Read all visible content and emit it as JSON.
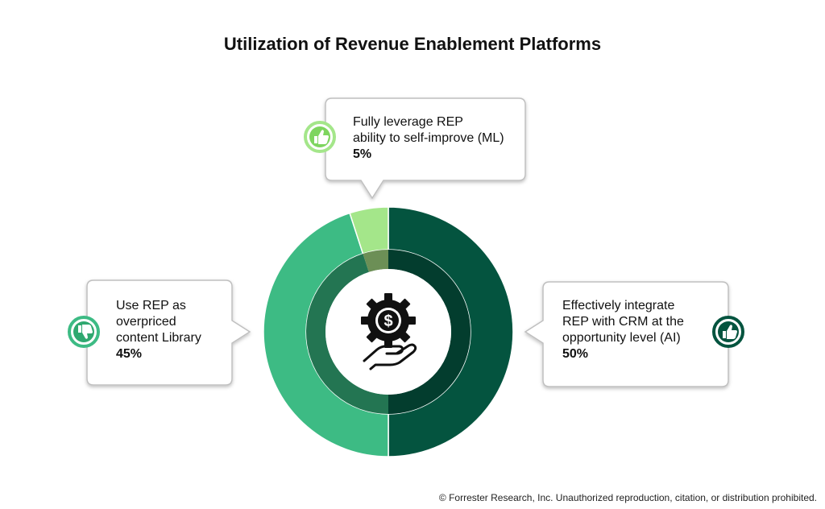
{
  "title": "Utilization of Revenue Enablement Platforms",
  "copyright": "© Forrester Research, Inc. Unauthorized reproduction, citation, or distribution prohibited.",
  "chart_data": {
    "type": "pie",
    "title": "Utilization of Revenue Enablement Platforms",
    "slices": [
      {
        "id": "ai",
        "lines": [
          "Effectively integrate",
          "REP with CRM at the",
          "opportunity level (AI)"
        ],
        "label": "Effectively integrate REP with CRM at the opportunity level (AI)",
        "value": 50,
        "value_label": "50%",
        "color": "#04543f",
        "inner_color": "#033d2e",
        "icon": "thumbs-up-icon"
      },
      {
        "id": "library",
        "lines": [
          "Use REP as",
          "overpriced",
          "content Library"
        ],
        "label": "Use REP as overpriced content Library",
        "value": 45,
        "value_label": "45%",
        "color": "#3dbb84",
        "inner_color": "#237552",
        "icon": "thumbs-down-icon"
      },
      {
        "id": "ml",
        "lines": [
          "Fully leverage REP",
          "ability to self-improve (ML)"
        ],
        "label": "Fully leverage REP ability to self-improve (ML)",
        "value": 5,
        "value_label": "5%",
        "color": "#a4e68a",
        "inner_color": "#6c8f56",
        "icon": "thumbs-up-icon"
      }
    ],
    "center_icon": "gear-dollar-hand-icon",
    "legend": "callouts"
  }
}
